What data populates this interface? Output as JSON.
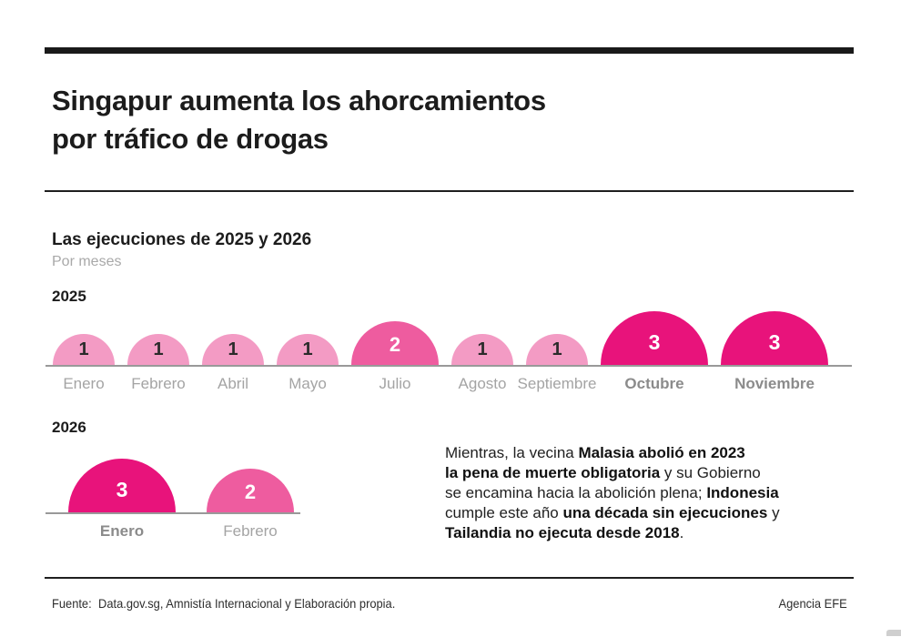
{
  "page": {
    "title_line1": "Singapur aumenta los ahorcamientos",
    "title_line2": "por tráfico de drogas"
  },
  "chart_data": {
    "type": "proportional-semicircle",
    "title": "Las ejecuciones de 2025 y 2026",
    "subtitle": "Por meses",
    "unit": "ejecuciones",
    "legend": "none",
    "colors": {
      "1": "#F39BC4",
      "2": "#EE5C9F",
      "3": "#E8137B"
    },
    "number_color_low": "#2b2b2b",
    "number_color_high": "#ffffff",
    "rows": [
      {
        "year": "2025",
        "months": [
          {
            "label": "Enero",
            "value": 1
          },
          {
            "label": "Febrero",
            "value": 1
          },
          {
            "label": "Abril",
            "value": 1
          },
          {
            "label": "Mayo",
            "value": 1
          },
          {
            "label": "Julio",
            "value": 2
          },
          {
            "label": "Agosto",
            "value": 1
          },
          {
            "label": "Septiembre",
            "value": 1
          },
          {
            "label": "Octubre",
            "value": 3,
            "emphasis": true
          },
          {
            "label": "Noviembre",
            "value": 3,
            "emphasis": true
          }
        ]
      },
      {
        "year": "2026",
        "months": [
          {
            "label": "Enero",
            "value": 3,
            "emphasis": true
          },
          {
            "label": "Febrero",
            "value": 2
          }
        ]
      }
    ]
  },
  "annotation": {
    "lines": [
      [
        {
          "t": "Mientras, la vecina ",
          "b": 0
        },
        {
          "t": "Malasia abolió en 2023",
          "b": 1
        }
      ],
      [
        {
          "t": "la pena de muerte obligatoria",
          "b": 1
        },
        {
          "t": " y su Gobierno",
          "b": 0
        }
      ],
      [
        {
          "t": "se encamina hacia la abolición plena; ",
          "b": 0
        },
        {
          "t": "Indonesia",
          "b": 1
        }
      ],
      [
        {
          "t": "cumple este año ",
          "b": 0
        },
        {
          "t": "una década sin ejecuciones",
          "b": 1
        },
        {
          "t": " y",
          "b": 0
        }
      ],
      [
        {
          "t": "Tailandia no ejecuta desde 2018",
          "b": 1
        },
        {
          "t": ".",
          "b": 0
        }
      ]
    ]
  },
  "footer": {
    "source_label": "Fuente:",
    "source_text": "Data.gov.sg, Amnistía Internacional y Elaboración propia.",
    "credit": "Agencia EFE"
  }
}
